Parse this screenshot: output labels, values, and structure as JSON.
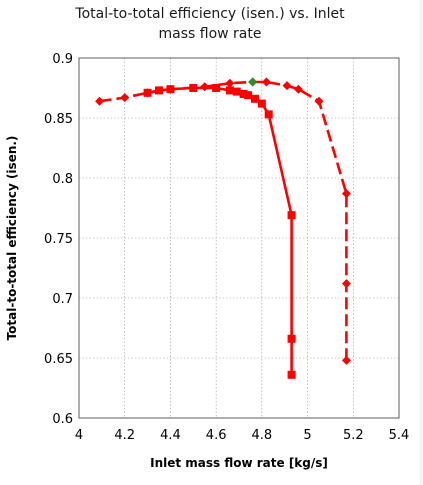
{
  "chart_data": {
    "type": "line",
    "title_lines": [
      "Total-to-total efficiency (isen.) vs. Inlet",
      "mass flow rate"
    ],
    "xlabel": "Inlet mass flow rate [kg/s]",
    "ylabel": "Total-to-total efficiency (isen.)",
    "xlim": [
      4,
      5.4
    ],
    "ylim": [
      0.6,
      0.9
    ],
    "xticks": [
      "4",
      "4.2",
      "4.4",
      "4.6",
      "4.8",
      "5",
      "5.2",
      "5.4"
    ],
    "yticks": [
      "0.6",
      "0.65",
      "0.7",
      "0.75",
      "0.8",
      "0.85",
      "0.9"
    ],
    "grid": true,
    "colors": {
      "series": "#ff0000",
      "highlight": "#2e8b2e"
    },
    "series": [
      {
        "line_style": "solid",
        "marker": "square",
        "x": [
          4.3,
          4.35,
          4.4,
          4.5,
          4.6,
          4.66,
          4.69,
          4.72,
          4.74,
          4.77,
          4.8,
          4.83,
          4.93,
          4.93,
          4.93
        ],
        "y": [
          0.871,
          0.873,
          0.874,
          0.875,
          0.875,
          0.873,
          0.872,
          0.87,
          0.869,
          0.866,
          0.862,
          0.853,
          0.769,
          0.666,
          0.636
        ]
      },
      {
        "line_style": "dashed",
        "marker": "diamond",
        "x": [
          4.09,
          4.2,
          4.3,
          4.4,
          4.55,
          4.66,
          4.76,
          4.82,
          4.91,
          4.96,
          5.05,
          5.17,
          5.17,
          5.17
        ],
        "y": [
          0.864,
          0.867,
          0.871,
          0.874,
          0.876,
          0.879,
          0.88,
          0.88,
          0.877,
          0.874,
          0.864,
          0.787,
          0.712,
          0.648
        ]
      }
    ],
    "highlight_point": {
      "x": 4.76,
      "y": 0.88
    }
  }
}
